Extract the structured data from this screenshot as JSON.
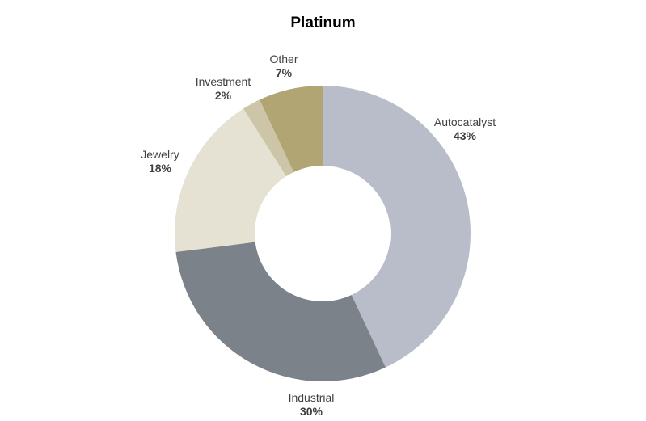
{
  "chart_data": {
    "type": "pie",
    "variant": "donut",
    "title": "Platinum",
    "categories": [
      "Autocatalyst",
      "Industrial",
      "Jewelry",
      "Investment",
      "Other"
    ],
    "values": [
      43,
      30,
      18,
      2,
      7
    ],
    "labels": [
      "43%",
      "30%",
      "18%",
      "2%",
      "7%"
    ],
    "colors": [
      "#b8bdc9",
      "#7b8289",
      "#e5e1d3",
      "#cdc5a7",
      "#b1a574"
    ],
    "start_angle": "12 o'clock",
    "direction": "clockwise",
    "legend": "none"
  }
}
